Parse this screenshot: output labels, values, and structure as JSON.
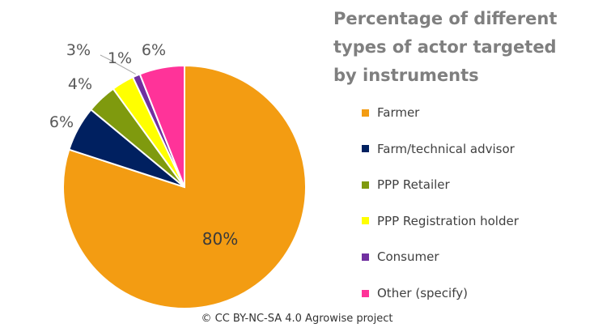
{
  "chart_data": {
    "type": "pie",
    "title_lines": [
      "Percentage of different",
      "types of actor targeted",
      "by instruments"
    ],
    "legend_position": "right",
    "slices": [
      {
        "label": "Farmer",
        "value": 80,
        "value_label": "80%",
        "color": "#f39c12"
      },
      {
        "label": "Farm/technical advisor",
        "value": 6,
        "value_label": "6%",
        "color": "#002060"
      },
      {
        "label": "PPP Retailer",
        "value": 4,
        "value_label": "4%",
        "color": "#7f9a0e"
      },
      {
        "label": "PPP Registration holder",
        "value": 3,
        "value_label": "3%",
        "color": "#ffff00"
      },
      {
        "label": "Consumer",
        "value": 1,
        "value_label": "1%",
        "color": "#7030a0"
      },
      {
        "label": "Other (specify)",
        "value": 6,
        "value_label": "6%",
        "color": "#ff3399"
      }
    ]
  },
  "footer": "© CC BY-NC-SA 4.0 Agrowise project"
}
